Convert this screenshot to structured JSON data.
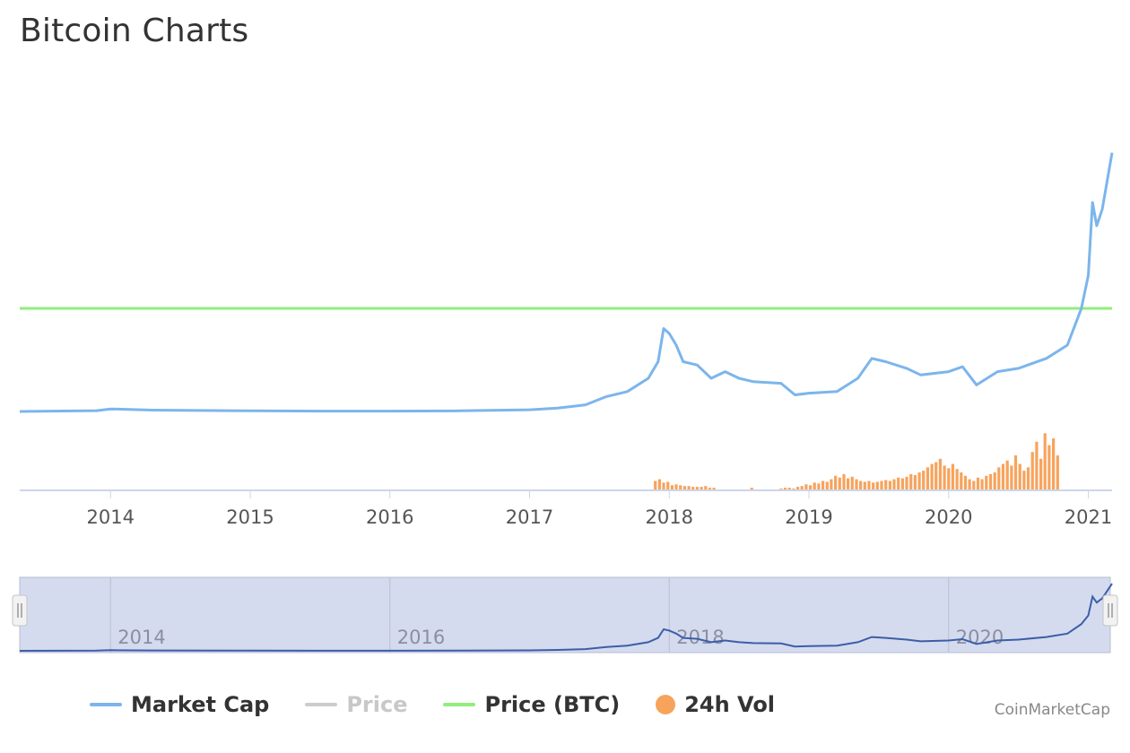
{
  "title": "Bitcoin Charts",
  "colors": {
    "market_cap": "#7cb5ec",
    "price": "#cccccc",
    "price_btc": "#90ed7d",
    "volume": "#f7a35c",
    "navigator_fill": "#d5dbee",
    "navigator_line": "#3b5ea8"
  },
  "legend": [
    {
      "label": "Market Cap",
      "color": "#7cb5ec",
      "symbol": "line",
      "visible": true
    },
    {
      "label": "Price",
      "color": "#cccccc",
      "symbol": "line",
      "visible": false
    },
    {
      "label": "Price (BTC)",
      "color": "#90ed7d",
      "symbol": "line",
      "visible": true
    },
    {
      "label": "24h Vol",
      "color": "#f7a35c",
      "symbol": "dot",
      "visible": true
    }
  ],
  "credits": "CoinMarketCap",
  "chart_data": {
    "type": "line",
    "title": "Bitcoin Charts",
    "x_range": [
      2013.35,
      2021.17
    ],
    "x_ticks": [
      "2014",
      "2015",
      "2016",
      "2017",
      "2018",
      "2019",
      "2020",
      "2021"
    ],
    "navigator_ticks": [
      "2014",
      "2016",
      "2018",
      "2020"
    ],
    "legend_position": "bottom",
    "grid": false,
    "series": [
      {
        "name": "Market Cap",
        "points": [
          [
            2013.35,
            0.0
          ],
          [
            2013.9,
            0.005
          ],
          [
            2014.0,
            0.015
          ],
          [
            2014.3,
            0.008
          ],
          [
            2015.0,
            0.004
          ],
          [
            2015.5,
            0.002
          ],
          [
            2016.0,
            0.002
          ],
          [
            2016.5,
            0.004
          ],
          [
            2017.0,
            0.01
          ],
          [
            2017.2,
            0.02
          ],
          [
            2017.4,
            0.04
          ],
          [
            2017.55,
            0.09
          ],
          [
            2017.7,
            0.12
          ],
          [
            2017.85,
            0.2
          ],
          [
            2017.92,
            0.3
          ],
          [
            2017.96,
            0.5
          ],
          [
            2018.0,
            0.47
          ],
          [
            2018.05,
            0.4
          ],
          [
            2018.1,
            0.3
          ],
          [
            2018.2,
            0.28
          ],
          [
            2018.3,
            0.2
          ],
          [
            2018.4,
            0.24
          ],
          [
            2018.5,
            0.2
          ],
          [
            2018.6,
            0.18
          ],
          [
            2018.8,
            0.17
          ],
          [
            2018.9,
            0.1
          ],
          [
            2019.0,
            0.11
          ],
          [
            2019.2,
            0.12
          ],
          [
            2019.35,
            0.2
          ],
          [
            2019.45,
            0.32
          ],
          [
            2019.55,
            0.3
          ],
          [
            2019.7,
            0.26
          ],
          [
            2019.8,
            0.22
          ],
          [
            2020.0,
            0.24
          ],
          [
            2020.1,
            0.27
          ],
          [
            2020.2,
            0.16
          ],
          [
            2020.35,
            0.24
          ],
          [
            2020.5,
            0.26
          ],
          [
            2020.7,
            0.32
          ],
          [
            2020.85,
            0.4
          ],
          [
            2020.95,
            0.62
          ],
          [
            2021.0,
            0.82
          ],
          [
            2021.03,
            1.26
          ],
          [
            2021.06,
            1.12
          ],
          [
            2021.1,
            1.22
          ],
          [
            2021.17,
            1.56
          ]
        ]
      },
      {
        "name": "Price (BTC)",
        "points": [
          [
            2013.35,
            1.0
          ],
          [
            2021.17,
            1.0
          ]
        ]
      },
      {
        "name": "24h Vol",
        "bar_start": 2017.9,
        "bar_step": 0.03,
        "bars": [
          0.1,
          0.12,
          0.08,
          0.09,
          0.05,
          0.06,
          0.05,
          0.04,
          0.04,
          0.03,
          0.03,
          0.03,
          0.04,
          0.02,
          0.02,
          0.0,
          0.0,
          0.0,
          0.0,
          0.0,
          0.0,
          0.0,
          0.0,
          0.02,
          0.0,
          0.0,
          0.0,
          0.0,
          0.0,
          0.0,
          0.01,
          0.02,
          0.02,
          0.01,
          0.03,
          0.04,
          0.06,
          0.05,
          0.08,
          0.07,
          0.1,
          0.09,
          0.12,
          0.16,
          0.14,
          0.18,
          0.13,
          0.15,
          0.12,
          0.1,
          0.09,
          0.1,
          0.08,
          0.09,
          0.1,
          0.11,
          0.1,
          0.12,
          0.14,
          0.13,
          0.15,
          0.18,
          0.17,
          0.2,
          0.22,
          0.26,
          0.3,
          0.32,
          0.36,
          0.28,
          0.25,
          0.3,
          0.24,
          0.2,
          0.16,
          0.12,
          0.1,
          0.14,
          0.12,
          0.16,
          0.18,
          0.2,
          0.26,
          0.3,
          0.34,
          0.28,
          0.4,
          0.3,
          0.22,
          0.26,
          0.44,
          0.56,
          0.36,
          0.66,
          0.52,
          0.6,
          0.4
        ]
      }
    ]
  }
}
